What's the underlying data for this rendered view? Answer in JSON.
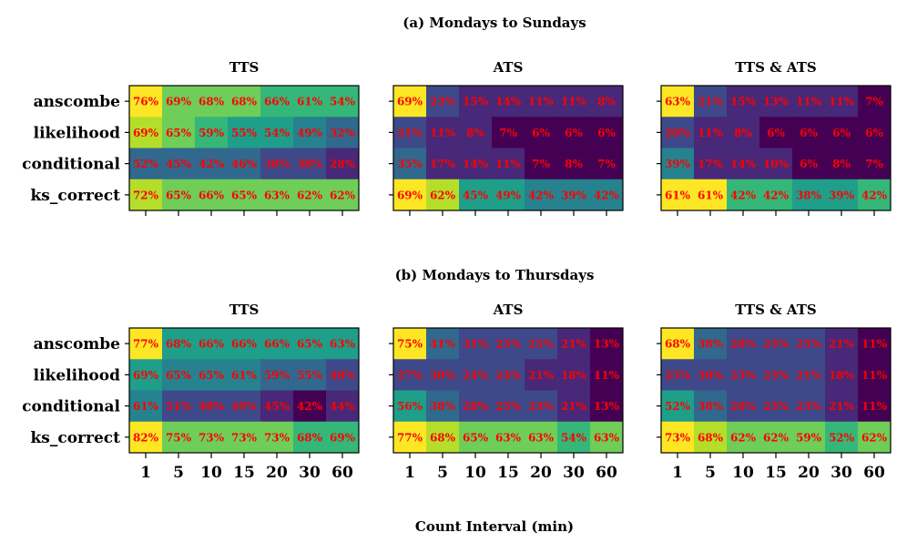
{
  "figure": {
    "xlabel": "Count Interval (min)",
    "colormap": [
      "#440154",
      "#482878",
      "#3e4989",
      "#31688e",
      "#26828e",
      "#1f9e89",
      "#35b779",
      "#6ece58",
      "#b5de2b",
      "#fde725"
    ],
    "cell_text_color": "#ff0000"
  },
  "chart_data": [
    {
      "type": "heatmap",
      "section_title": "(a) Mondays to Sundays",
      "rows": [
        "anscombe",
        "likelihood",
        "conditional",
        "ks_correct"
      ],
      "columns": [
        "1",
        "5",
        "10",
        "15",
        "20",
        "30",
        "60"
      ],
      "panels": [
        {
          "title": "TTS",
          "labels": [
            [
              "76%",
              "69%",
              "68%",
              "68%",
              "66%",
              "61%",
              "54%"
            ],
            [
              "69%",
              "65%",
              "59%",
              "55%",
              "54%",
              "49%",
              "32%"
            ],
            [
              "52%",
              "45%",
              "42%",
              "46%",
              "38%",
              "38%",
              "28%"
            ],
            [
              "72%",
              "65%",
              "66%",
              "65%",
              "63%",
              "62%",
              "62%"
            ]
          ],
          "colors": [
            [
              9,
              7,
              7,
              7,
              6,
              6,
              6
            ],
            [
              8,
              7,
              6,
              5,
              5,
              4,
              3
            ],
            [
              3,
              3,
              3,
              3,
              2,
              2,
              1
            ],
            [
              8,
              7,
              7,
              7,
              7,
              7,
              7
            ]
          ]
        },
        {
          "title": "ATS",
          "labels": [
            [
              "69%",
              "23%",
              "15%",
              "14%",
              "11%",
              "11%",
              "8%"
            ],
            [
              "21%",
              "11%",
              "8%",
              "7%",
              "6%",
              "6%",
              "6%"
            ],
            [
              "35%",
              "17%",
              "14%",
              "11%",
              "7%",
              "8%",
              "7%"
            ],
            [
              "69%",
              "62%",
              "45%",
              "49%",
              "42%",
              "39%",
              "42%"
            ]
          ],
          "colors": [
            [
              9,
              2,
              1,
              1,
              1,
              1,
              1
            ],
            [
              2,
              1,
              1,
              0,
              0,
              0,
              0
            ],
            [
              3,
              1,
              1,
              1,
              0,
              0,
              0
            ],
            [
              9,
              8,
              5,
              5,
              4,
              4,
              4
            ]
          ]
        },
        {
          "title": "TTS & ATS",
          "labels": [
            [
              "63%",
              "21%",
              "15%",
              "13%",
              "11%",
              "11%",
              "7%"
            ],
            [
              "20%",
              "11%",
              "8%",
              "6%",
              "6%",
              "6%",
              "6%"
            ],
            [
              "39%",
              "17%",
              "14%",
              "10%",
              "6%",
              "8%",
              "7%"
            ],
            [
              "61%",
              "61%",
              "42%",
              "42%",
              "38%",
              "39%",
              "42%"
            ]
          ],
          "colors": [
            [
              9,
              2,
              1,
              1,
              1,
              1,
              0
            ],
            [
              2,
              1,
              1,
              0,
              0,
              0,
              0
            ],
            [
              4,
              1,
              1,
              1,
              0,
              0,
              0
            ],
            [
              9,
              9,
              6,
              6,
              5,
              5,
              6
            ]
          ]
        }
      ]
    },
    {
      "type": "heatmap",
      "section_title": "(b) Mondays to Thursdays",
      "rows": [
        "anscombe",
        "likelihood",
        "conditional",
        "ks_correct"
      ],
      "columns": [
        "1",
        "5",
        "10",
        "15",
        "20",
        "30",
        "60"
      ],
      "panels": [
        {
          "title": "TTS",
          "labels": [
            [
              "77%",
              "68%",
              "66%",
              "66%",
              "66%",
              "65%",
              "63%"
            ],
            [
              "69%",
              "65%",
              "65%",
              "61%",
              "59%",
              "55%",
              "48%"
            ],
            [
              "61%",
              "51%",
              "48%",
              "49%",
              "45%",
              "42%",
              "44%"
            ],
            [
              "82%",
              "75%",
              "73%",
              "73%",
              "73%",
              "68%",
              "69%"
            ]
          ],
          "colors": [
            [
              9,
              5,
              5,
              5,
              5,
              5,
              5
            ],
            [
              5,
              4,
              4,
              4,
              3,
              3,
              2
            ],
            [
              4,
              2,
              2,
              2,
              1,
              0,
              1
            ],
            [
              9,
              7,
              7,
              7,
              7,
              6,
              6
            ]
          ]
        },
        {
          "title": "ATS",
          "labels": [
            [
              "75%",
              "41%",
              "31%",
              "25%",
              "25%",
              "21%",
              "13%"
            ],
            [
              "27%",
              "30%",
              "24%",
              "24%",
              "21%",
              "18%",
              "11%"
            ],
            [
              "56%",
              "38%",
              "28%",
              "25%",
              "23%",
              "21%",
              "13%"
            ],
            [
              "77%",
              "68%",
              "65%",
              "63%",
              "63%",
              "54%",
              "63%"
            ]
          ],
          "colors": [
            [
              9,
              3,
              2,
              2,
              2,
              1,
              0
            ],
            [
              2,
              2,
              2,
              2,
              1,
              1,
              0
            ],
            [
              5,
              3,
              2,
              2,
              2,
              1,
              0
            ],
            [
              9,
              8,
              7,
              7,
              7,
              6,
              7
            ]
          ]
        },
        {
          "title": "TTS & ATS",
          "labels": [
            [
              "68%",
              "38%",
              "28%",
              "25%",
              "25%",
              "21%",
              "11%"
            ],
            [
              "25%",
              "30%",
              "23%",
              "23%",
              "21%",
              "18%",
              "11%"
            ],
            [
              "52%",
              "38%",
              "28%",
              "23%",
              "23%",
              "21%",
              "11%"
            ],
            [
              "73%",
              "68%",
              "62%",
              "62%",
              "59%",
              "52%",
              "62%"
            ]
          ],
          "colors": [
            [
              9,
              3,
              2,
              2,
              2,
              1,
              0
            ],
            [
              2,
              2,
              2,
              2,
              2,
              1,
              0
            ],
            [
              5,
              3,
              2,
              2,
              2,
              1,
              0
            ],
            [
              9,
              8,
              7,
              7,
              7,
              6,
              7
            ]
          ]
        }
      ]
    }
  ]
}
